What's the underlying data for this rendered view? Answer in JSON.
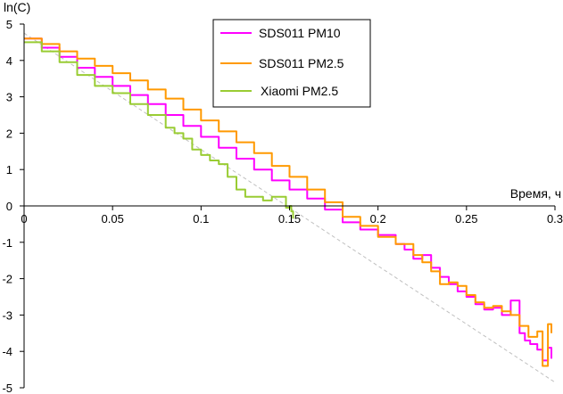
{
  "chart_data": {
    "type": "line",
    "title": "",
    "xlabel": "Время, ч",
    "ylabel": "ln(C)",
    "xlim": [
      0,
      0.3
    ],
    "ylim": [
      -5,
      5
    ],
    "xticks": [
      0,
      0.05,
      0.1,
      0.15,
      0.2,
      0.25,
      0.3
    ],
    "xtick_labels": [
      "0",
      "0.05",
      "0.1",
      "0.15",
      "0.2",
      "0.25",
      "0.3"
    ],
    "yticks": [
      -5,
      -4,
      -3,
      -2,
      -1,
      0,
      1,
      2,
      3,
      4,
      5
    ],
    "ytick_labels": [
      "-5",
      "-4",
      "-3",
      "-2",
      "-1",
      "0",
      "1",
      "2",
      "3",
      "4",
      "5"
    ],
    "grid": false,
    "legend_position": "top-center",
    "fit_line": {
      "color": "#c0c0c0",
      "x": [
        0,
        0.3
      ],
      "y": [
        4.75,
        -4.85
      ]
    },
    "series": [
      {
        "name": "SDS011 PM10",
        "color": "#ff00ff",
        "x": [
          0,
          0.01,
          0.02,
          0.03,
          0.04,
          0.05,
          0.06,
          0.07,
          0.08,
          0.09,
          0.1,
          0.11,
          0.12,
          0.13,
          0.14,
          0.15,
          0.16,
          0.17,
          0.18,
          0.19,
          0.2,
          0.21,
          0.215,
          0.22,
          0.225,
          0.23,
          0.235,
          0.24,
          0.245,
          0.25,
          0.255,
          0.26,
          0.265,
          0.27,
          0.275,
          0.278,
          0.28,
          0.283,
          0.286,
          0.29,
          0.293,
          0.296,
          0.298
        ],
        "y": [
          4.6,
          4.35,
          4.1,
          3.8,
          3.55,
          3.3,
          3.05,
          2.8,
          2.5,
          2.2,
          1.9,
          1.6,
          1.3,
          1.0,
          0.7,
          0.45,
          0.2,
          -0.1,
          -0.45,
          -0.65,
          -0.8,
          -1.05,
          -1.2,
          -1.45,
          -1.35,
          -1.7,
          -1.95,
          -2.15,
          -2.35,
          -2.5,
          -2.7,
          -2.85,
          -2.8,
          -3.0,
          -2.6,
          -2.6,
          -3.5,
          -3.7,
          -3.8,
          -3.95,
          -4.25,
          -3.9,
          -4.2
        ]
      },
      {
        "name": "SDS011 PM2.5",
        "color": "#ff9900",
        "x": [
          0,
          0.01,
          0.02,
          0.03,
          0.04,
          0.05,
          0.06,
          0.07,
          0.08,
          0.09,
          0.1,
          0.11,
          0.12,
          0.13,
          0.14,
          0.15,
          0.16,
          0.17,
          0.18,
          0.19,
          0.2,
          0.21,
          0.22,
          0.225,
          0.23,
          0.235,
          0.24,
          0.245,
          0.25,
          0.255,
          0.26,
          0.265,
          0.27,
          0.275,
          0.28,
          0.285,
          0.29,
          0.293,
          0.296,
          0.298
        ],
        "y": [
          4.6,
          4.45,
          4.25,
          4.05,
          3.85,
          3.65,
          3.45,
          3.2,
          2.95,
          2.65,
          2.35,
          2.05,
          1.75,
          1.45,
          1.1,
          0.8,
          0.45,
          0.1,
          -0.3,
          -0.55,
          -0.85,
          -1.05,
          -1.35,
          -1.55,
          -1.8,
          -2.15,
          -2.1,
          -2.2,
          -2.45,
          -2.65,
          -2.8,
          -2.75,
          -2.9,
          -3.0,
          -3.3,
          -3.6,
          -3.45,
          -4.4,
          -3.25,
          -3.5
        ]
      },
      {
        "name": "Xiaomi PM2.5",
        "color": "#99cc33",
        "x": [
          0,
          0.01,
          0.02,
          0.03,
          0.04,
          0.05,
          0.06,
          0.07,
          0.08,
          0.085,
          0.09,
          0.095,
          0.1,
          0.105,
          0.11,
          0.115,
          0.12,
          0.125,
          0.13,
          0.135,
          0.14,
          0.145,
          0.148,
          0.15,
          0.151,
          0.152
        ],
        "y": [
          4.5,
          4.25,
          3.95,
          3.6,
          3.3,
          3.1,
          2.8,
          2.5,
          2.15,
          2.0,
          1.85,
          1.55,
          1.4,
          1.25,
          1.15,
          0.8,
          0.45,
          0.25,
          0.25,
          0.15,
          0.25,
          0.25,
          -0.05,
          0.0,
          -0.15,
          -0.35
        ]
      }
    ]
  }
}
